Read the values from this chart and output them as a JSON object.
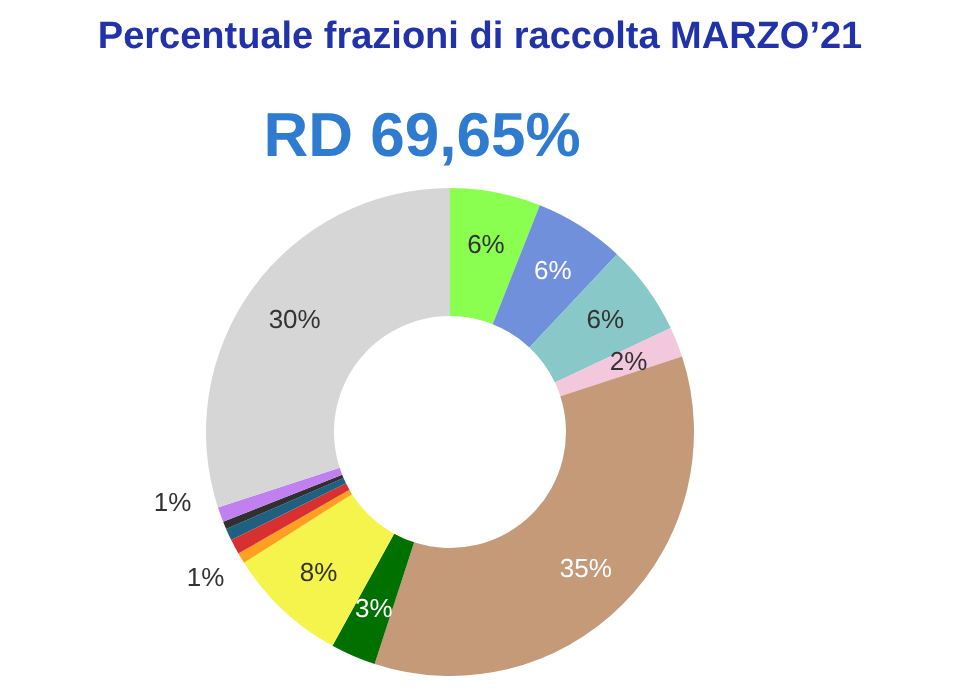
{
  "chart_data": {
    "type": "donut",
    "title": "Percentuale frazioni di raccolta  MARZO’21",
    "subtitle": "RD 69,65%",
    "categories": [
      null,
      null,
      null,
      null,
      null,
      null,
      null,
      null,
      null,
      null,
      null,
      null,
      null
    ],
    "values": [
      6,
      6,
      6,
      2,
      35,
      3,
      8,
      0.7,
      1,
      0.8,
      0.5,
      1,
      30
    ],
    "colors": [
      "#8aff50",
      "#7090dc",
      "#88c8c8",
      "#f4c8dc",
      "#c49a78",
      "#007000",
      "#f4f44c",
      "#ffa020",
      "#d83030",
      "#1f5f7f",
      "#303030",
      "#c080f0",
      "#d6d6d6"
    ],
    "value_labels": [
      "6%",
      "6%",
      "6%",
      "2%",
      "35%",
      "3%",
      "8%",
      null,
      "1%",
      null,
      null,
      "1%",
      "30%"
    ]
  }
}
